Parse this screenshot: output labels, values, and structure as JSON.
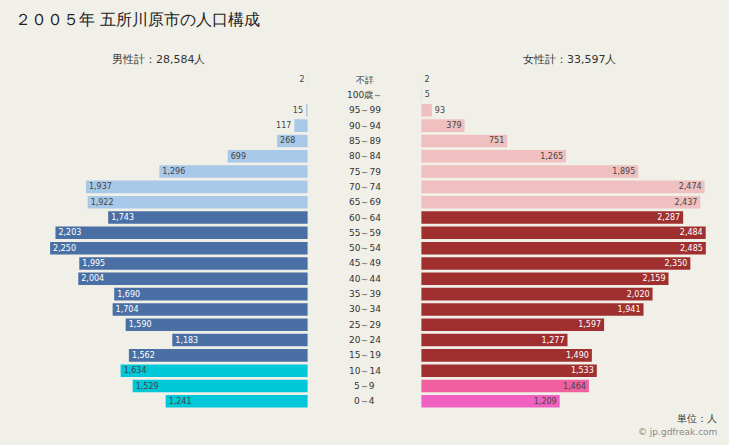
{
  "chart_data": {
    "type": "bar",
    "orientation": "horizontal",
    "title": "２００５年 五所川原市の人口構成",
    "categories": [
      "不詳",
      "100歳～",
      "95～99",
      "90～94",
      "85～89",
      "80～84",
      "75～79",
      "70～74",
      "65～69",
      "60～64",
      "55～59",
      "50～54",
      "45～49",
      "40～44",
      "35～39",
      "30～34",
      "25～29",
      "20～24",
      "15～19",
      "10～14",
      "5～9",
      "0～4"
    ],
    "series": [
      {
        "name": "男性計：28,584人",
        "values": [
          2,
          0,
          15,
          117,
          268,
          699,
          1296,
          1937,
          1922,
          1743,
          2203,
          2250,
          1995,
          2004,
          1690,
          1704,
          1590,
          1183,
          1562,
          1634,
          1529,
          1241
        ],
        "value_labels": [
          "2",
          null,
          "15",
          "117",
          "268",
          "699",
          "1,296",
          "1,937",
          "1,922",
          "1,743",
          "2,203",
          "2,250",
          "1,995",
          "2,004",
          "1,690",
          "1,704",
          "1,590",
          "1,183",
          "1,562",
          "1,634",
          "1,529",
          "1,241"
        ],
        "colors": [
          "#a8c8e8",
          "#a8c8e8",
          "#a8c8e8",
          "#a8c8e8",
          "#a8c8e8",
          "#a8c8e8",
          "#a8c8e8",
          "#a8c8e8",
          "#a8c8e8",
          "#4a6fa5",
          "#4a6fa5",
          "#4a6fa5",
          "#4a6fa5",
          "#4a6fa5",
          "#4a6fa5",
          "#4a6fa5",
          "#4a6fa5",
          "#4a6fa5",
          "#4a6fa5",
          "#00c8d8",
          "#00c8d8",
          "#00c8d8"
        ]
      },
      {
        "name": "女性計：33,597人",
        "values": [
          2,
          5,
          93,
          379,
          751,
          1265,
          1895,
          2474,
          2437,
          2287,
          2484,
          2485,
          2350,
          2159,
          2020,
          1941,
          1597,
          1277,
          1490,
          1533,
          1464,
          1209
        ],
        "value_labels": [
          "2",
          "5",
          "93",
          "379",
          "751",
          "1,265",
          "1,895",
          "2,474",
          "2,437",
          "2,287",
          "2,484",
          "2,485",
          "2,350",
          "2,159",
          "2,020",
          "1,941",
          "1,597",
          "1,277",
          "1,490",
          "1,533",
          "1,464",
          "1,209"
        ],
        "colors": [
          "#f0c0c0",
          "#f0c0c0",
          "#f0c0c0",
          "#f0c0c0",
          "#f0c0c0",
          "#f0c0c0",
          "#f0c0c0",
          "#f0c0c0",
          "#f0c0c0",
          "#a03030",
          "#a03030",
          "#a03030",
          "#a03030",
          "#a03030",
          "#a03030",
          "#a03030",
          "#a03030",
          "#a03030",
          "#a03030",
          "#a03030",
          "#f060a0",
          "#f060c0"
        ]
      }
    ],
    "xlim": [
      0,
      2600
    ],
    "grid": false,
    "data_labels": true,
    "tick_labels": "y",
    "annotations": [
      {
        "text": "単位：人"
      },
      {
        "text": "© jp.gdfreak.com"
      }
    ]
  }
}
